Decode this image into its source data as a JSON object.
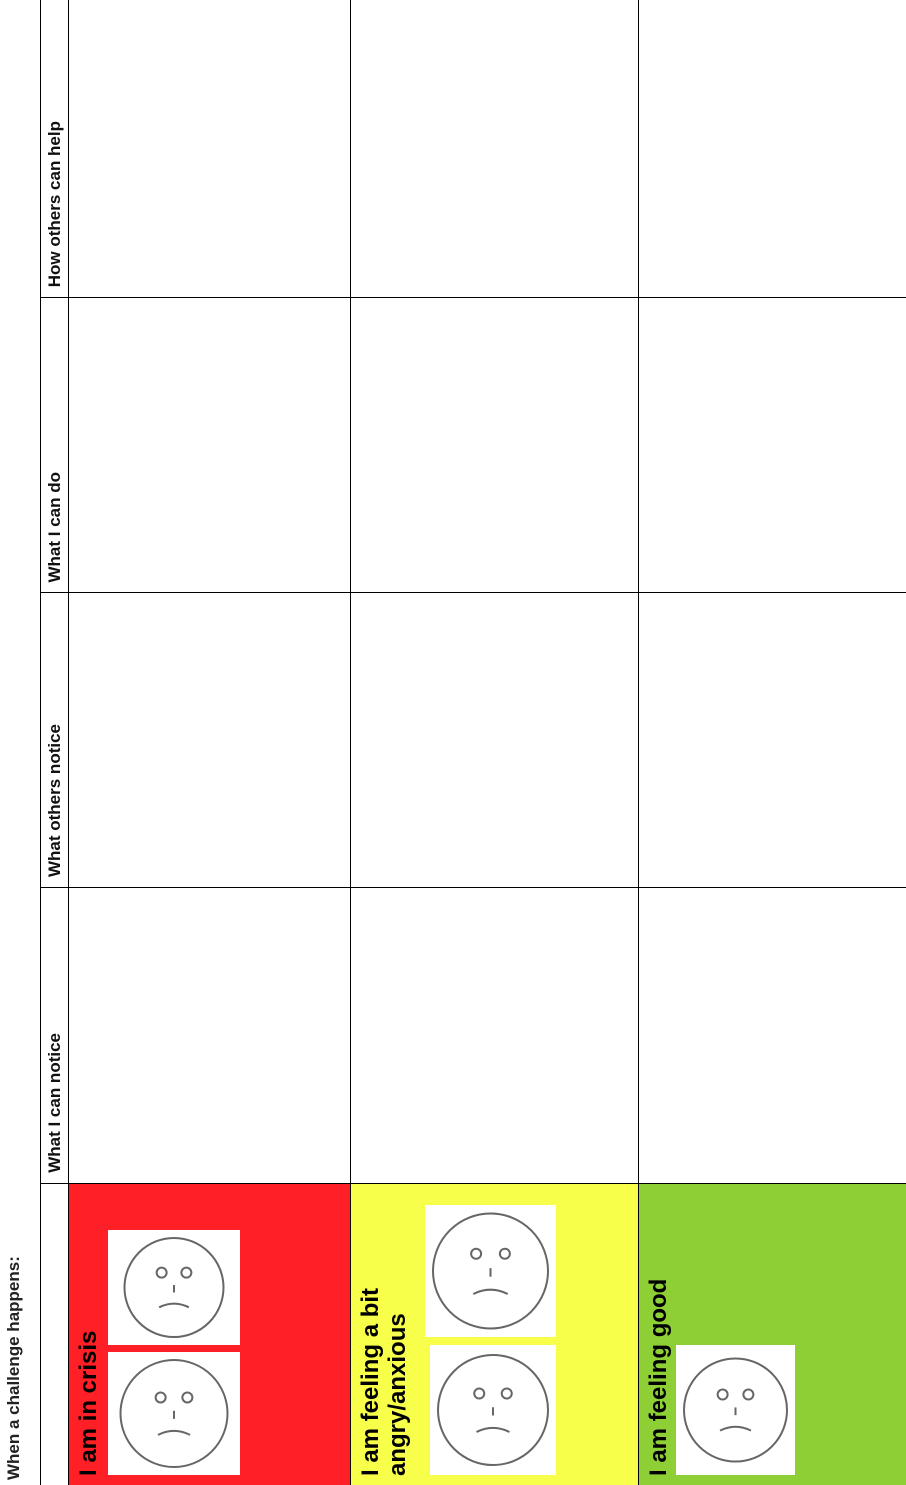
{
  "title": "When a challenge happens:",
  "table": {
    "headers": [
      "What I can notice",
      "What others notice",
      "What I can do",
      "How others can help"
    ],
    "rows": [
      {
        "label": "I am in crisis",
        "color": "#ff1f26"
      },
      {
        "label": "I am feeling a bit angry/anxious",
        "color": "#f7ff4a"
      },
      {
        "label": "I am feeling good",
        "color": "#8fcf36"
      }
    ]
  }
}
